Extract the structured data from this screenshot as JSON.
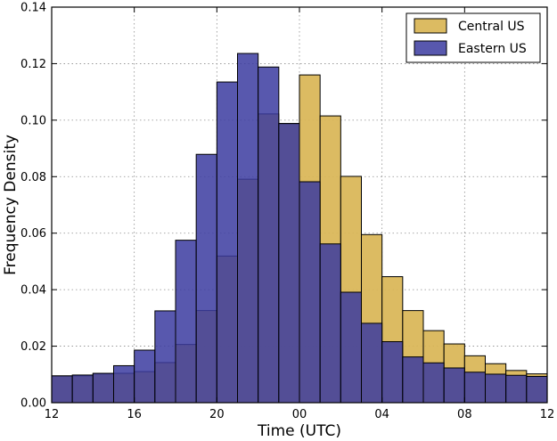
{
  "chart_data": {
    "type": "bar",
    "xlabel": "Time (UTC)",
    "ylabel": "Frequency Density",
    "xlim": [
      12,
      36
    ],
    "ylim": [
      0,
      0.14
    ],
    "x_ticks": [
      {
        "value": 12,
        "label": "12"
      },
      {
        "value": 16,
        "label": "16"
      },
      {
        "value": 20,
        "label": "20"
      },
      {
        "value": 24,
        "label": "00"
      },
      {
        "value": 28,
        "label": "04"
      },
      {
        "value": 32,
        "label": "08"
      },
      {
        "value": 36,
        "label": "12"
      }
    ],
    "y_ticks": [
      {
        "value": 0.0,
        "label": "0.00"
      },
      {
        "value": 0.02,
        "label": "0.02"
      },
      {
        "value": 0.04,
        "label": "0.04"
      },
      {
        "value": 0.06,
        "label": "0.06"
      },
      {
        "value": 0.08,
        "label": "0.08"
      },
      {
        "value": 0.1,
        "label": "0.10"
      },
      {
        "value": 0.12,
        "label": "0.12"
      },
      {
        "value": 0.14,
        "label": "0.14"
      }
    ],
    "grid": true,
    "legend_position": "top-right",
    "bin_starts": [
      12,
      13,
      14,
      15,
      16,
      17,
      18,
      19,
      20,
      21,
      22,
      23,
      24,
      25,
      26,
      27,
      28,
      29,
      30,
      31,
      32,
      33,
      34,
      35
    ],
    "bin_width": 1,
    "series": [
      {
        "name": "Central US",
        "color": "#D9B555",
        "values": [
          0.0095,
          0.0095,
          0.0102,
          0.0104,
          0.011,
          0.0142,
          0.0206,
          0.0326,
          0.0519,
          0.0791,
          0.1022,
          0.0988,
          0.116,
          0.1015,
          0.0801,
          0.0595,
          0.0446,
          0.0326,
          0.0255,
          0.0208,
          0.0166,
          0.0138,
          0.0114,
          0.0102
        ]
      },
      {
        "name": "Eastern US",
        "color": "#3B3BA0",
        "values": [
          0.0095,
          0.0098,
          0.0104,
          0.0131,
          0.0186,
          0.0325,
          0.0575,
          0.0879,
          0.1135,
          0.1236,
          0.1188,
          0.0988,
          0.0782,
          0.0562,
          0.0391,
          0.0281,
          0.0216,
          0.0162,
          0.0141,
          0.0123,
          0.0108,
          0.0101,
          0.0097,
          0.0093
        ]
      }
    ],
    "colors": {
      "overlap": "#3A3267",
      "edge": "#000000",
      "grid": "#8c8c8c"
    }
  }
}
